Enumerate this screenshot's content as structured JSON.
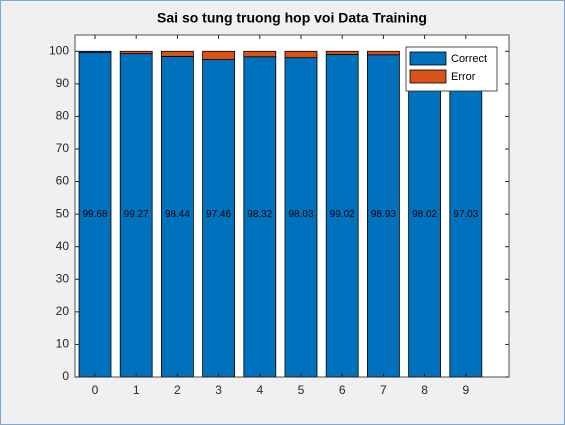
{
  "chart_data": {
    "type": "stacked_bar",
    "title": "Sai so tung truong hop voi Data Training",
    "categories": [
      "0",
      "1",
      "2",
      "3",
      "4",
      "5",
      "6",
      "7",
      "8",
      "9"
    ],
    "series": [
      {
        "name": "Correct",
        "color": "#0072bd",
        "values": [
          99.68,
          99.27,
          98.44,
          97.46,
          98.32,
          98.03,
          99.02,
          98.93,
          98.02,
          97.03
        ]
      },
      {
        "name": "Error",
        "color": "#d95319",
        "values": [
          0.32,
          0.73,
          1.56,
          2.54,
          1.68,
          1.97,
          0.98,
          1.07,
          1.98,
          2.97
        ]
      }
    ],
    "ylim": [
      0,
      105
    ],
    "yticks": [
      0,
      10,
      20,
      30,
      40,
      50,
      60,
      70,
      80,
      90,
      100
    ],
    "legend": "upper right"
  }
}
